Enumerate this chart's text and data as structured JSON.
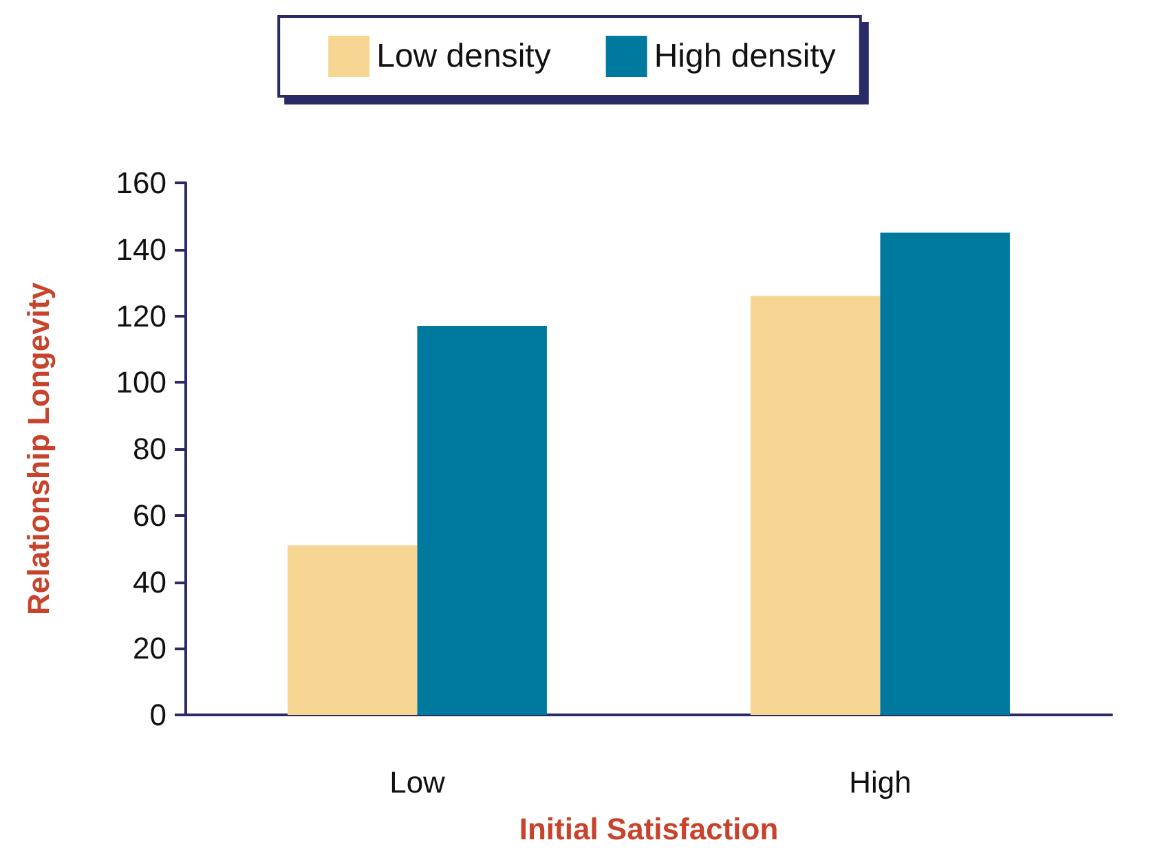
{
  "chart_data": {
    "type": "bar",
    "xlabel": "Initial Satisfaction",
    "ylabel": "Relationship Longevity",
    "categories": [
      "Low",
      "High"
    ],
    "series": [
      {
        "name": "Low density",
        "color": "#f7d592",
        "values": [
          51,
          126
        ]
      },
      {
        "name": "High density",
        "color": "#00799f",
        "values": [
          117,
          145
        ]
      }
    ],
    "ylim": [
      0,
      160
    ],
    "yticks": [
      0,
      20,
      40,
      60,
      80,
      100,
      120,
      140,
      160
    ],
    "grid": false,
    "legend": "top"
  }
}
